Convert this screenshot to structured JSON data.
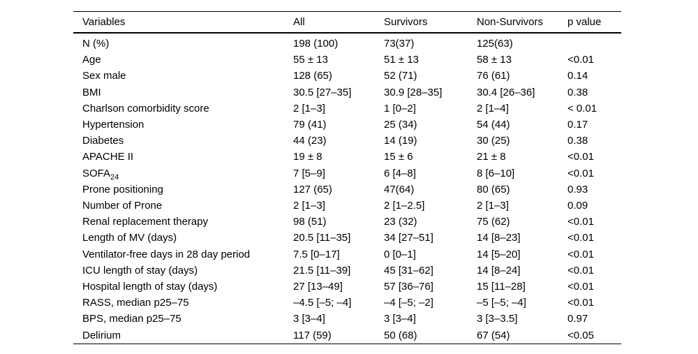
{
  "colors": {
    "background": "#ffffff",
    "text": "#000000",
    "rule": "#000000"
  },
  "table": {
    "columns": [
      "Variables",
      "All",
      "Survivors",
      "Non-Survivors",
      "p value"
    ],
    "rows": [
      {
        "cells": [
          "N (%)",
          "198 (100)",
          "73(37)",
          "125(63)",
          ""
        ]
      },
      {
        "cells": [
          "Age",
          "55 ± 13",
          "51 ± 13",
          "58 ± 13",
          "<0.01"
        ]
      },
      {
        "cells": [
          "Sex male",
          "128 (65)",
          "52 (71)",
          "76 (61)",
          "0.14"
        ]
      },
      {
        "cells": [
          "BMI",
          "30.5 [27–35]",
          "30.9 [28–35]",
          "30.4 [26–36]",
          "0.38"
        ]
      },
      {
        "cells": [
          "Charlson comorbidity score",
          "2 [1–3]",
          "1 [0–2]",
          "2 [1–4]",
          "< 0.01"
        ]
      },
      {
        "cells": [
          "Hypertension",
          "79 (41)",
          "25 (34)",
          "54 (44)",
          "0.17"
        ]
      },
      {
        "cells": [
          "Diabetes",
          "44 (23)",
          "14 (19)",
          "30 (25)",
          "0.38"
        ]
      },
      {
        "cells": [
          "APACHE II",
          "19 ± 8",
          "15 ± 6",
          "21 ± 8",
          "<0.01"
        ]
      },
      {
        "cells": [
          "SOFA",
          "7 [5–9]",
          "6 [4–8]",
          "8 [6–10]",
          "<0.01"
        ],
        "sub": "24"
      },
      {
        "cells": [
          "Prone positioning",
          "127 (65)",
          "47(64)",
          "80 (65)",
          "0.93"
        ]
      },
      {
        "cells": [
          "Number of Prone",
          "2 [1–3]",
          "2 [1–2.5]",
          "2 [1–3]",
          "0.09"
        ]
      },
      {
        "cells": [
          "Renal replacement therapy",
          "98 (51)",
          "23 (32)",
          "75 (62)",
          "<0.01"
        ]
      },
      {
        "cells": [
          "Length of MV (days)",
          "20.5 [11–35]",
          "34 [27–51]",
          "14 [8–23]",
          "<0.01"
        ]
      },
      {
        "cells": [
          "Ventilator-free days in 28 day period",
          "7.5 [0–17]",
          "0 [0–1]",
          "14 [5–20]",
          "<0.01"
        ]
      },
      {
        "cells": [
          "ICU length of stay (days)",
          "21.5 [11–39]",
          "45 [31–62]",
          "14 [8–24]",
          "<0.01"
        ]
      },
      {
        "cells": [
          "Hospital length of stay (days)",
          "27 [13–49]",
          "57 [36–76]",
          "15 [11–28]",
          "<0.01"
        ]
      },
      {
        "cells": [
          "RASS, median p25–75",
          "–4.5 [–5; –4]",
          "–4 [–5; –2]",
          "–5 [–5; –4]",
          "<0.01"
        ]
      },
      {
        "cells": [
          "BPS, median p25–75",
          "3 [3–4]",
          "3 [3–4]",
          "3 [3–3.5]",
          "0.97"
        ]
      },
      {
        "cells": [
          "Delirium",
          "117 (59)",
          "50 (68)",
          "67 (54)",
          "<0.05"
        ]
      }
    ]
  }
}
